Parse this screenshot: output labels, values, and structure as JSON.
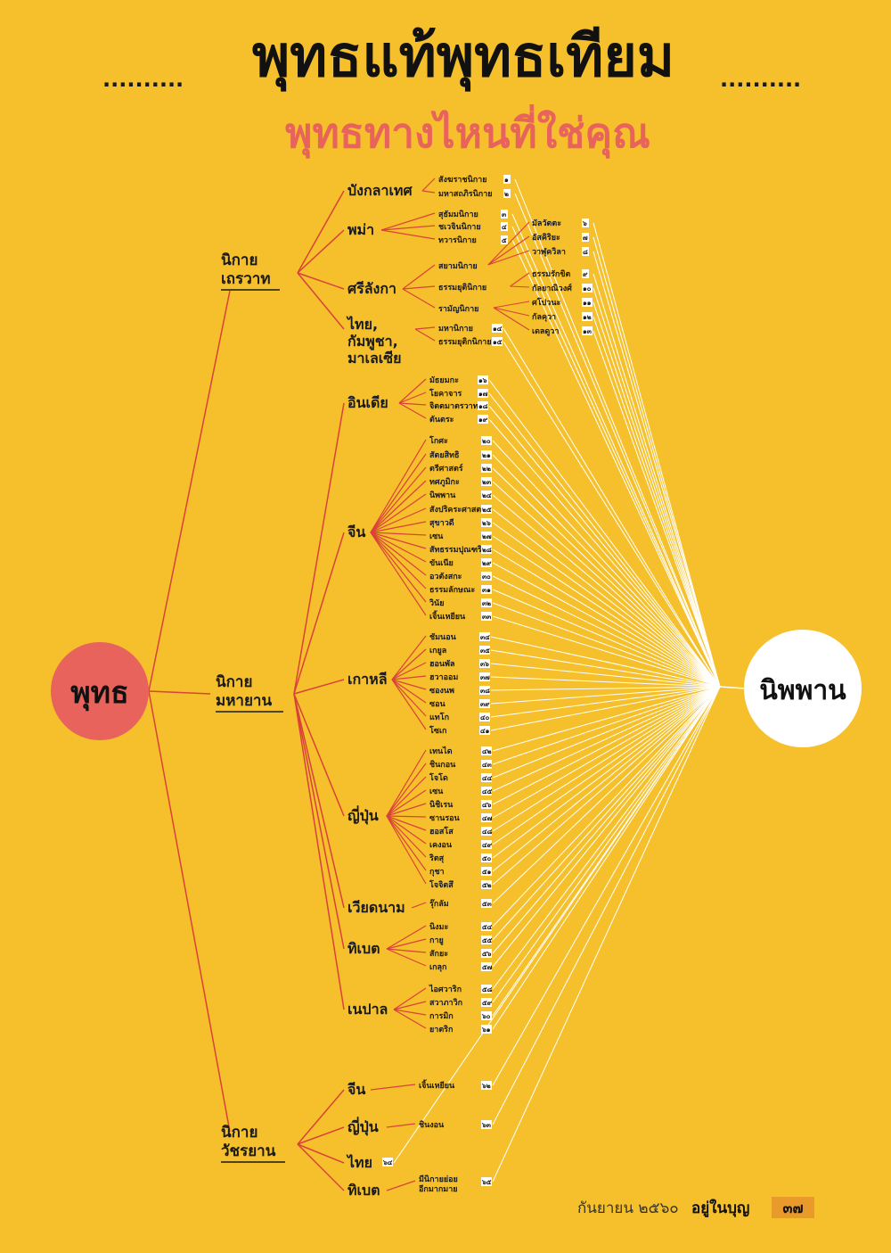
{
  "title": "พุทธแท้พุทธเทียม",
  "subtitle": "พุทธทางไหนที่ใช่คุณ",
  "title_dots": "..........",
  "root": "พุทธ",
  "goal": "นิพพาน",
  "colors": {
    "background": "#f5c02c",
    "root": "#e8635b",
    "goal": "#ffffff",
    "subtitle": "#e8635b",
    "branch_line": "#d9423a",
    "goal_line": "#ffffff",
    "page_badge": "#e89a2a"
  },
  "schools": [
    {
      "name": "นิกายเถรวาท",
      "label_lines": [
        "นิกาย",
        "เถรวาท"
      ],
      "countries": [
        {
          "name": "บังกลาเทศ",
          "sects": [
            {
              "name": "สังฆราชนิกาย",
              "num": "๑"
            },
            {
              "name": "มหาสถภิรนิกาย",
              "num": "๒"
            }
          ]
        },
        {
          "name": "พม่า",
          "sects": [
            {
              "name": "สุธัมมนิกาย",
              "num": "๓"
            },
            {
              "name": "ชเวจินนิกาย",
              "num": "๔"
            },
            {
              "name": "ทวารนิกาย",
              "num": "๕"
            }
          ]
        },
        {
          "name": "ศรีลังกา",
          "sects": [
            {
              "name": "สยามนิกาย",
              "subs": [
                {
                  "name": "มัลวัตตะ",
                  "num": "๖"
                },
                {
                  "name": "อัสคิริยะ",
                  "num": "๗"
                },
                {
                  "name": "วาฬุควิลา",
                  "num": "๘"
                }
              ]
            },
            {
              "name": "ธรรมยุตินิกาย",
              "subs": [
                {
                  "name": "ธรรมรักขิต",
                  "num": "๙"
                },
                {
                  "name": "กัลยาณิวงศ์",
                  "num": "๑๐"
                }
              ]
            },
            {
              "name": "รามัญนิกาย",
              "subs": [
                {
                  "name": "ศโปวนะ",
                  "num": "๑๑"
                },
                {
                  "name": "กัลคุวา",
                  "num": "๑๒"
                },
                {
                  "name": "เดลดูวา",
                  "num": "๑๓"
                }
              ]
            }
          ]
        },
        {
          "name": "ไทย, กัมพูชา, มาเลเซีย",
          "label_lines": [
            "ไทย,",
            "กัมพูชา,",
            "มาเลเซีย"
          ],
          "sects": [
            {
              "name": "มหานิกาย",
              "num": "๑๔"
            },
            {
              "name": "ธรรมยุติกนิกาย",
              "num": "๑๕"
            }
          ]
        }
      ]
    },
    {
      "name": "นิกายมหายาน",
      "label_lines": [
        "นิกาย",
        "มหายาน"
      ],
      "countries": [
        {
          "name": "อินเดีย",
          "sects": [
            {
              "name": "มัธยมกะ",
              "num": "๑๖"
            },
            {
              "name": "โยคาจาร",
              "num": "๑๗"
            },
            {
              "name": "จิตตมาตรวาท",
              "num": "๑๘"
            },
            {
              "name": "ตันตระ",
              "num": "๑๙"
            }
          ]
        },
        {
          "name": "จีน",
          "sects": [
            {
              "name": "โกศะ",
              "num": "๒๐"
            },
            {
              "name": "สัตยสิทธิ",
              "num": "๒๑"
            },
            {
              "name": "ตรีศาสตร์",
              "num": "๒๒"
            },
            {
              "name": "ทศภูมิกะ",
              "num": "๒๓"
            },
            {
              "name": "นิพพาน",
              "num": "๒๔"
            },
            {
              "name": "สังปริคระศาสตร์",
              "num": "๒๕"
            },
            {
              "name": "สุขาวดี",
              "num": "๒๖"
            },
            {
              "name": "เซน",
              "num": "๒๗"
            },
            {
              "name": "สัทธรรมปุณฑริก",
              "num": "๒๘"
            },
            {
              "name": "ขันเนีย",
              "num": "๒๙"
            },
            {
              "name": "อวตังสกะ",
              "num": "๓๐"
            },
            {
              "name": "ธรรมลักษณะ",
              "num": "๓๑"
            },
            {
              "name": "วินัย",
              "num": "๓๒"
            },
            {
              "name": "เจิ้นเหยียน",
              "num": "๓๓"
            }
          ]
        },
        {
          "name": "เกาหลี",
          "sects": [
            {
              "name": "ชัมนอน",
              "num": "๓๔"
            },
            {
              "name": "เกยูล",
              "num": "๓๕"
            },
            {
              "name": "ฮอนพัล",
              "num": "๓๖"
            },
            {
              "name": "ฮวาออม",
              "num": "๓๗"
            },
            {
              "name": "ซองนพ",
              "num": "๓๘"
            },
            {
              "name": "ซอน",
              "num": "๓๙"
            },
            {
              "name": "แทโก",
              "num": "๔๐"
            },
            {
              "name": "โซเก",
              "num": "๔๑"
            }
          ]
        },
        {
          "name": "ญี่ปุ่น",
          "sects": [
            {
              "name": "เทนได",
              "num": "๔๒"
            },
            {
              "name": "ชินกอน",
              "num": "๔๓"
            },
            {
              "name": "โจโด",
              "num": "๔๔"
            },
            {
              "name": "เซน",
              "num": "๔๕"
            },
            {
              "name": "นิชิเรน",
              "num": "๔๖"
            },
            {
              "name": "ซานรอน",
              "num": "๔๗"
            },
            {
              "name": "ฮอสโส",
              "num": "๔๘"
            },
            {
              "name": "เคงอน",
              "num": "๔๙"
            },
            {
              "name": "ริตสุ",
              "num": "๕๐"
            },
            {
              "name": "กุชา",
              "num": "๕๑"
            },
            {
              "name": "โจจิตสึ",
              "num": "๕๒"
            }
          ]
        },
        {
          "name": "เวียดนาม",
          "sects": [
            {
              "name": "รุ๊กลัม",
              "num": "๕๓"
            }
          ]
        },
        {
          "name": "ทิเบต",
          "sects": [
            {
              "name": "นิงมะ",
              "num": "๕๔"
            },
            {
              "name": "กายู",
              "num": "๕๕"
            },
            {
              "name": "สักยะ",
              "num": "๕๖"
            },
            {
              "name": "เกลุก",
              "num": "๕๗"
            }
          ]
        },
        {
          "name": "เนปาล",
          "sects": [
            {
              "name": "ไอศวาริก",
              "num": "๕๘"
            },
            {
              "name": "สวาภาวิก",
              "num": "๕๙"
            },
            {
              "name": "การมิก",
              "num": "๖๐"
            },
            {
              "name": "ยาตริก",
              "num": "๖๑"
            }
          ]
        }
      ]
    },
    {
      "name": "นิกายวัชรยาน",
      "label_lines": [
        "นิกาย",
        "วัชรยาน"
      ],
      "countries": [
        {
          "name": "จีน",
          "sects": [
            {
              "name": "เจิ้นเหยียน",
              "num": "๖๒"
            }
          ]
        },
        {
          "name": "ญี่ปุ่น",
          "sects": [
            {
              "name": "ชินงอน",
              "num": "๖๓"
            }
          ]
        },
        {
          "name": "ไทย",
          "num": "๖๔",
          "sects": []
        },
        {
          "name": "ทิเบต",
          "sects": [
            {
              "name": "มีนิกายย่อยอีกมากมาย",
              "label_lines": [
                "มีนิกายย่อย",
                "อีกมากมาย"
              ],
              "num": "๖๕"
            }
          ]
        }
      ]
    }
  ],
  "footer": {
    "date": "กันยายน ๒๕๖๐",
    "magazine": "อยู่ในบุญ",
    "page": "๓๗"
  }
}
